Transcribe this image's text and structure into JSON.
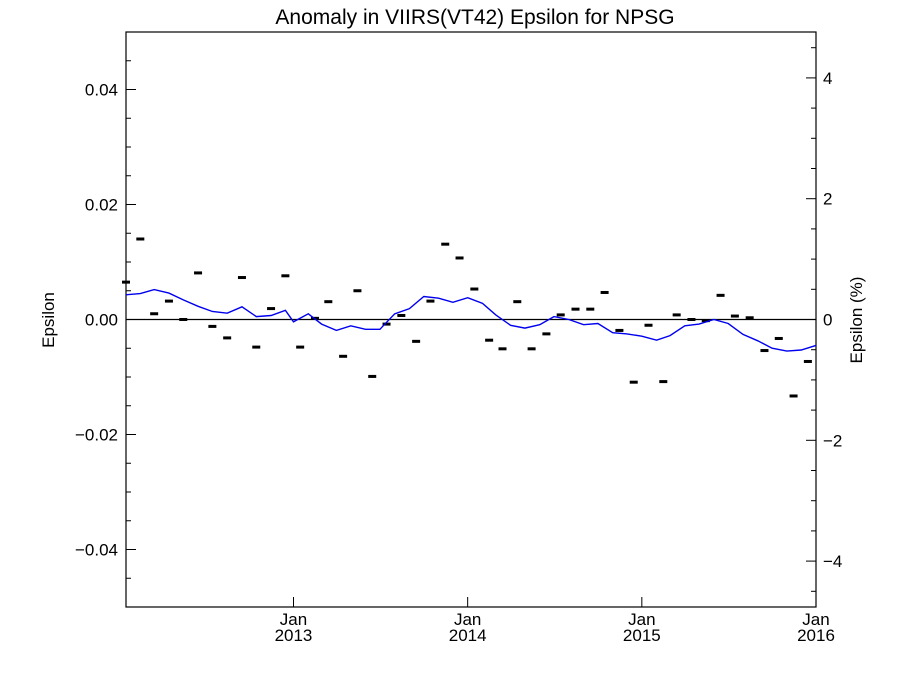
{
  "chart_data": {
    "type": "scatter",
    "title": "Anomaly in VIIRS(VT42) Epsilon for NPSG",
    "ylabel": "Epsilon",
    "ylabel_right": "Epsilon (%)",
    "ylim": [
      -0.05,
      0.05
    ],
    "ylim_right": [
      -4.76,
      4.76
    ],
    "y_ticks": [
      {
        "value": -0.04,
        "label": "−0.04"
      },
      {
        "value": -0.02,
        "label": "−0.02"
      },
      {
        "value": 0.0,
        "label": "0.00"
      },
      {
        "value": 0.02,
        "label": "0.02"
      },
      {
        "value": 0.04,
        "label": "0.04"
      }
    ],
    "y_ticks_right": [
      {
        "value": -4,
        "label": "−4"
      },
      {
        "value": -2,
        "label": "−2"
      },
      {
        "value": 0,
        "label": "0"
      },
      {
        "value": 2,
        "label": "2"
      },
      {
        "value": 4,
        "label": "4"
      }
    ],
    "xlim": [
      "2012-01-16",
      "2016-01-01"
    ],
    "x_ticks": [
      {
        "value": "2013-01-01",
        "month": "Jan",
        "year": "2013"
      },
      {
        "value": "2014-01-01",
        "month": "Jan",
        "year": "2014"
      },
      {
        "value": "2015-01-01",
        "month": "Jan",
        "year": "2015"
      },
      {
        "value": "2016-01-01",
        "month": "Jan",
        "year": "2016"
      }
    ],
    "zero_line": true,
    "grid": false,
    "series": [
      {
        "kind": "points",
        "marker": "dash",
        "color": "#000000",
        "points": [
          {
            "x": "2012-01-16",
            "y": 0.0065
          },
          {
            "x": "2012-02-15",
            "y": 0.014
          },
          {
            "x": "2012-03-15",
            "y": 0.001
          },
          {
            "x": "2012-04-15",
            "y": 0.0032
          },
          {
            "x": "2012-05-15",
            "y": 0.0
          },
          {
            "x": "2012-06-15",
            "y": 0.0081
          },
          {
            "x": "2012-07-15",
            "y": -0.0012
          },
          {
            "x": "2012-08-15",
            "y": -0.0032
          },
          {
            "x": "2012-09-15",
            "y": 0.0073
          },
          {
            "x": "2012-10-15",
            "y": -0.0048
          },
          {
            "x": "2012-11-15",
            "y": 0.0019
          },
          {
            "x": "2012-12-15",
            "y": 0.0076
          },
          {
            "x": "2013-01-15",
            "y": -0.0048
          },
          {
            "x": "2013-02-15",
            "y": 0.0002
          },
          {
            "x": "2013-03-15",
            "y": 0.0031
          },
          {
            "x": "2013-04-15",
            "y": -0.0064
          },
          {
            "x": "2013-05-15",
            "y": 0.005
          },
          {
            "x": "2013-06-15",
            "y": -0.0099
          },
          {
            "x": "2013-07-15",
            "y": -0.0008
          },
          {
            "x": "2013-08-15",
            "y": 0.0007
          },
          {
            "x": "2013-09-15",
            "y": -0.0038
          },
          {
            "x": "2013-10-15",
            "y": 0.0032
          },
          {
            "x": "2013-11-15",
            "y": 0.0131
          },
          {
            "x": "2013-12-15",
            "y": 0.0107
          },
          {
            "x": "2014-01-15",
            "y": 0.0053
          },
          {
            "x": "2014-02-15",
            "y": -0.0036
          },
          {
            "x": "2014-03-15",
            "y": -0.0051
          },
          {
            "x": "2014-04-15",
            "y": 0.0031
          },
          {
            "x": "2014-05-15",
            "y": -0.0051
          },
          {
            "x": "2014-06-15",
            "y": -0.0025
          },
          {
            "x": "2014-07-15",
            "y": 0.0008
          },
          {
            "x": "2014-08-15",
            "y": 0.0018
          },
          {
            "x": "2014-09-15",
            "y": 0.0018
          },
          {
            "x": "2014-10-15",
            "y": 0.0047
          },
          {
            "x": "2014-11-15",
            "y": -0.0019
          },
          {
            "x": "2014-12-15",
            "y": -0.0109
          },
          {
            "x": "2015-01-15",
            "y": -0.001
          },
          {
            "x": "2015-02-15",
            "y": -0.0108
          },
          {
            "x": "2015-03-15",
            "y": 0.0008
          },
          {
            "x": "2015-04-15",
            "y": 0.0
          },
          {
            "x": "2015-05-15",
            "y": -0.0002
          },
          {
            "x": "2015-06-15",
            "y": 0.0042
          },
          {
            "x": "2015-07-15",
            "y": 0.0006
          },
          {
            "x": "2015-08-15",
            "y": 0.0003
          },
          {
            "x": "2015-09-15",
            "y": -0.0054
          },
          {
            "x": "2015-10-15",
            "y": -0.0033
          },
          {
            "x": "2015-11-15",
            "y": -0.0133
          },
          {
            "x": "2015-12-15",
            "y": -0.0073
          }
        ]
      },
      {
        "kind": "line",
        "color": "#0000ee",
        "points": [
          {
            "x": "2012-01-16",
            "y": 0.0043
          },
          {
            "x": "2012-02-15",
            "y": 0.0045
          },
          {
            "x": "2012-03-15",
            "y": 0.0052
          },
          {
            "x": "2012-04-15",
            "y": 0.0046
          },
          {
            "x": "2012-05-15",
            "y": 0.0034
          },
          {
            "x": "2012-06-15",
            "y": 0.0023
          },
          {
            "x": "2012-07-15",
            "y": 0.0014
          },
          {
            "x": "2012-08-15",
            "y": 0.0011
          },
          {
            "x": "2012-09-15",
            "y": 0.0022
          },
          {
            "x": "2012-10-15",
            "y": 0.0005
          },
          {
            "x": "2012-11-15",
            "y": 0.0007
          },
          {
            "x": "2012-12-15",
            "y": 0.0016
          },
          {
            "x": "2013-01-01",
            "y": -0.0004
          },
          {
            "x": "2013-02-01",
            "y": 0.001
          },
          {
            "x": "2013-03-01",
            "y": -0.0008
          },
          {
            "x": "2013-04-01",
            "y": -0.0019
          },
          {
            "x": "2013-05-01",
            "y": -0.0011
          },
          {
            "x": "2013-06-01",
            "y": -0.0017
          },
          {
            "x": "2013-07-01",
            "y": -0.0017
          },
          {
            "x": "2013-08-01",
            "y": 0.001
          },
          {
            "x": "2013-09-01",
            "y": 0.0019
          },
          {
            "x": "2013-10-01",
            "y": 0.004
          },
          {
            "x": "2013-11-01",
            "y": 0.0037
          },
          {
            "x": "2013-12-01",
            "y": 0.003
          },
          {
            "x": "2014-01-01",
            "y": 0.0038
          },
          {
            "x": "2014-02-01",
            "y": 0.0028
          },
          {
            "x": "2014-03-01",
            "y": 0.0008
          },
          {
            "x": "2014-04-01",
            "y": -0.001
          },
          {
            "x": "2014-05-01",
            "y": -0.0015
          },
          {
            "x": "2014-06-01",
            "y": -0.0009
          },
          {
            "x": "2014-07-01",
            "y": 0.0005
          },
          {
            "x": "2014-08-01",
            "y": 0.0
          },
          {
            "x": "2014-09-01",
            "y": -0.0009
          },
          {
            "x": "2014-10-01",
            "y": -0.0007
          },
          {
            "x": "2014-11-01",
            "y": -0.0023
          },
          {
            "x": "2014-12-01",
            "y": -0.0025
          },
          {
            "x": "2015-01-01",
            "y": -0.0029
          },
          {
            "x": "2015-02-01",
            "y": -0.0036
          },
          {
            "x": "2015-03-01",
            "y": -0.0028
          },
          {
            "x": "2015-04-01",
            "y": -0.0011
          },
          {
            "x": "2015-05-01",
            "y": -0.0008
          },
          {
            "x": "2015-06-01",
            "y": 0.0
          },
          {
            "x": "2015-07-01",
            "y": -0.0007
          },
          {
            "x": "2015-08-01",
            "y": -0.0026
          },
          {
            "x": "2015-09-01",
            "y": -0.0037
          },
          {
            "x": "2015-10-01",
            "y": -0.005
          },
          {
            "x": "2015-11-01",
            "y": -0.0055
          },
          {
            "x": "2015-12-01",
            "y": -0.0053
          },
          {
            "x": "2016-01-01",
            "y": -0.0045
          }
        ]
      }
    ]
  }
}
